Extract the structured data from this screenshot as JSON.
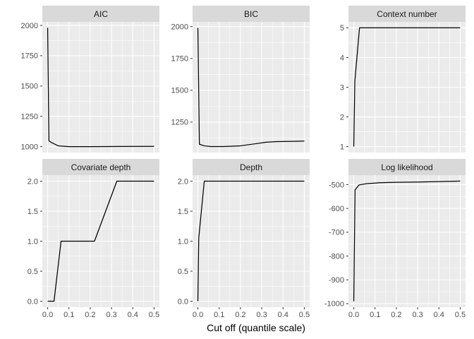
{
  "figure": {
    "xlabel": "Cut off (quantile scale)",
    "background": "#FFFFFF",
    "colors": {
      "panel_bg": "#EBEBEB",
      "strip_bg": "#D9D9D9",
      "grid": "#FFFFFF",
      "line": "#000000",
      "axis_text": "#4D4D4D",
      "strip_text": "#1A1A1A",
      "tick_mark": "#333333"
    }
  },
  "axis_x": {
    "lim": [
      -0.025,
      0.525
    ],
    "ticks": [
      0,
      0.1,
      0.2,
      0.3,
      0.4,
      0.5
    ],
    "tick_labels": [
      "0.0",
      "0.1",
      "0.2",
      "0.3",
      "0.4",
      "0.5"
    ],
    "minor": [
      0.05,
      0.15,
      0.25,
      0.35,
      0.45
    ]
  },
  "chart_data": [
    {
      "type": "line",
      "title": "AIC",
      "x": [
        0,
        0.006,
        0.02,
        0.05,
        0.1,
        0.2,
        0.35,
        0.5
      ],
      "y": [
        1980,
        1048,
        1032,
        1006,
        1000,
        1000,
        1001,
        1002
      ],
      "ylim": [
        951,
        2029
      ],
      "yticks": [
        1000,
        1250,
        1500,
        1750,
        2000
      ],
      "ytick_labels": [
        "1000",
        "1250",
        "1500",
        "1750",
        "2000"
      ],
      "yminor": [
        1125,
        1375,
        1625,
        1875
      ]
    },
    {
      "type": "line",
      "title": "BIC",
      "x": [
        0,
        0.007,
        0.03,
        0.06,
        0.12,
        0.2,
        0.27,
        0.32,
        0.37,
        0.45,
        0.5
      ],
      "y": [
        1990,
        1076,
        1064,
        1058,
        1058,
        1064,
        1080,
        1092,
        1097,
        1099,
        1101
      ],
      "ylim": [
        1011,
        2037
      ],
      "yticks": [
        1250,
        1500,
        1750,
        2000
      ],
      "ytick_labels": [
        "1250",
        "1500",
        "1750",
        "2000"
      ],
      "yminor": [
        1125,
        1375,
        1625,
        1875
      ]
    },
    {
      "type": "line",
      "title": "Context number",
      "x": [
        0,
        0.005,
        0.027,
        0.5
      ],
      "y": [
        1,
        3.2,
        5,
        5
      ],
      "ylim": [
        0.8,
        5.2
      ],
      "yticks": [
        1,
        2,
        3,
        4,
        5
      ],
      "ytick_labels": [
        "1",
        "2",
        "3",
        "4",
        "5"
      ],
      "yminor": [
        1.5,
        2.5,
        3.5,
        4.5
      ]
    },
    {
      "type": "line",
      "title": "Covariate depth",
      "x": [
        0,
        0.03,
        0.063,
        0.22,
        0.325,
        0.5
      ],
      "y": [
        0,
        0,
        1,
        1,
        2,
        2
      ],
      "ylim": [
        -0.1,
        2.1
      ],
      "yticks": [
        0,
        0.5,
        1,
        1.5,
        2
      ],
      "ytick_labels": [
        "0.0",
        "0.5",
        "1.0",
        "1.5",
        "2.0"
      ],
      "yminor": [
        0.25,
        0.75,
        1.25,
        1.75
      ]
    },
    {
      "type": "line",
      "title": "Depth",
      "x": [
        0,
        0.004,
        0.03,
        0.5
      ],
      "y": [
        0,
        1.05,
        2,
        2
      ],
      "ylim": [
        -0.1,
        2.1
      ],
      "yticks": [
        0,
        0.5,
        1,
        1.5,
        2
      ],
      "ytick_labels": [
        "0.0",
        "0.5",
        "1.0",
        "1.5",
        "2.0"
      ],
      "yminor": [
        0.25,
        0.75,
        1.25,
        1.75
      ]
    },
    {
      "type": "line",
      "title": "Log likelihood",
      "x": [
        0,
        0.006,
        0.025,
        0.06,
        0.12,
        0.2,
        0.3,
        0.4,
        0.5
      ],
      "y": [
        -990,
        -522,
        -501,
        -496,
        -492,
        -490,
        -489,
        -487,
        -485
      ],
      "ylim": [
        -1015,
        -460
      ],
      "yticks": [
        -1000,
        -900,
        -800,
        -700,
        -600,
        -500
      ],
      "ytick_labels": [
        "-1000",
        "-900",
        "-800",
        "-700",
        "-600",
        "-500"
      ],
      "yminor": [
        -950,
        -850,
        -750,
        -650,
        -550
      ]
    }
  ]
}
